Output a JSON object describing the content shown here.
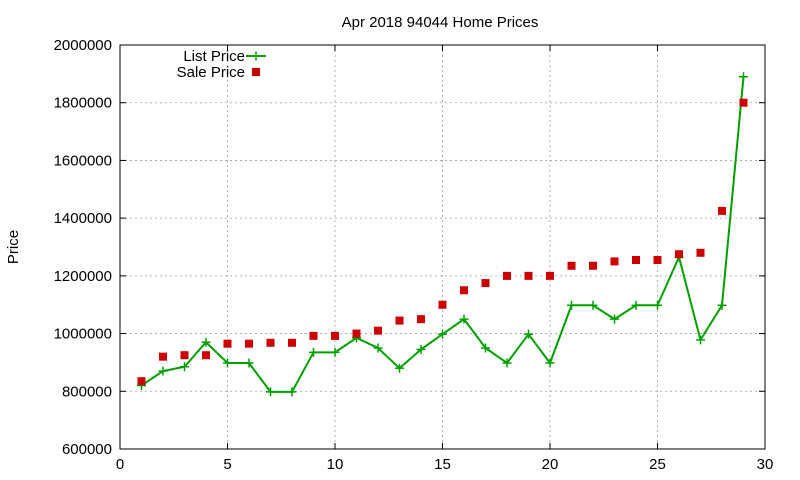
{
  "chart_data": {
    "type": "line",
    "title": "Apr 2018 94044 Home Prices",
    "xlabel": "",
    "ylabel": "Price",
    "xlim": [
      0,
      30
    ],
    "ylim": [
      600000,
      2000000
    ],
    "x_ticks": [
      "0",
      "5",
      "10",
      "15",
      "20",
      "25",
      "30"
    ],
    "y_ticks": [
      "600000",
      "800000",
      "1000000",
      "1200000",
      "1400000",
      "1600000",
      "1800000",
      "2000000"
    ],
    "grid": true,
    "legend_position": "top-left",
    "x": [
      1,
      2,
      3,
      4,
      5,
      6,
      7,
      8,
      9,
      10,
      11,
      12,
      13,
      14,
      15,
      16,
      17,
      18,
      19,
      20,
      21,
      22,
      23,
      24,
      25,
      26,
      27,
      28,
      29
    ],
    "series": [
      {
        "name": "List Price",
        "style": "line-cross",
        "color": "#00a000",
        "values": [
          820000,
          870000,
          885000,
          970000,
          898000,
          898000,
          798000,
          798000,
          935000,
          935000,
          985000,
          950000,
          880000,
          945000,
          998000,
          1050000,
          950000,
          898000,
          998000,
          898000,
          1098000,
          1098000,
          1050000,
          1098000,
          1098000,
          1265000,
          978000,
          1098000,
          1890000
        ]
      },
      {
        "name": "Sale Price",
        "style": "square",
        "color": "#cc0000",
        "values": [
          835000,
          920000,
          925000,
          925000,
          965000,
          965000,
          968000,
          968000,
          992000,
          992000,
          1000000,
          1010000,
          1045000,
          1050000,
          1100000,
          1150000,
          1175000,
          1200000,
          1200000,
          1200000,
          1235000,
          1235000,
          1250000,
          1255000,
          1255000,
          1275000,
          1280000,
          1425000,
          1800000
        ]
      }
    ]
  }
}
